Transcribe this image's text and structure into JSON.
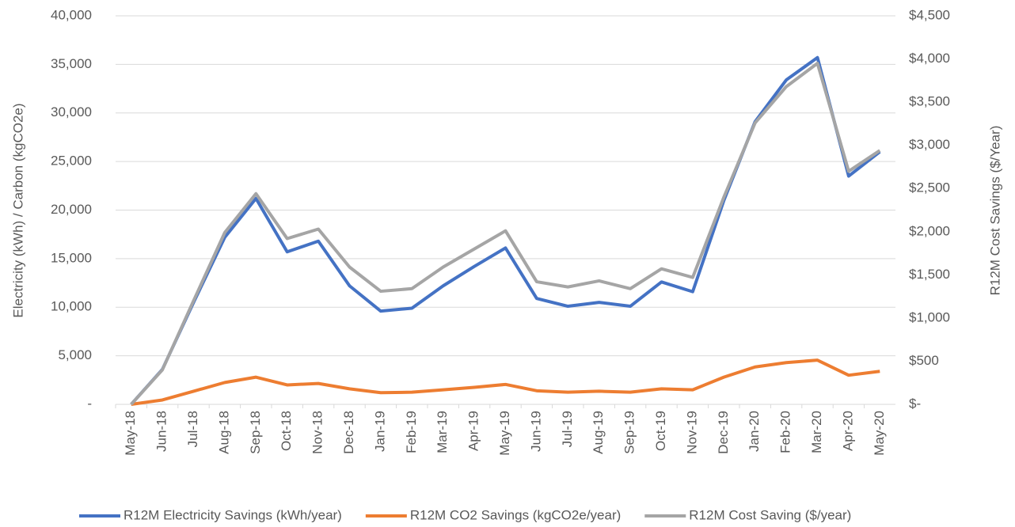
{
  "chart_data": {
    "type": "line",
    "categories": [
      "May-18",
      "Jun-18",
      "Jul-18",
      "Aug-18",
      "Sep-18",
      "Oct-18",
      "Nov-18",
      "Dec-18",
      "Jan-19",
      "Feb-19",
      "Mar-19",
      "Apr-19",
      "May-19",
      "Jun-19",
      "Jul-19",
      "Aug-19",
      "Sep-19",
      "Oct-19",
      "Nov-19",
      "Dec-19",
      "Jan-20",
      "Feb-20",
      "Mar-20",
      "Apr-20",
      "May-20"
    ],
    "series": [
      {
        "name": "R12M Electricity Savings (kWh/year)",
        "color": "#4472c4",
        "values": [
          0,
          3600,
          10500,
          17200,
          21200,
          15700,
          16800,
          12200,
          9600,
          9900,
          12200,
          14200,
          16100,
          10900,
          10100,
          10500,
          10100,
          12600,
          11600,
          21000,
          29100,
          33400,
          35700,
          23500,
          26000
        ]
      },
      {
        "name": "R12M CO2 Savings (kgCO2e/year)",
        "color": "#ed7d31",
        "values": [
          0,
          450,
          1350,
          2250,
          2800,
          2000,
          2150,
          1600,
          1200,
          1250,
          1500,
          1750,
          2050,
          1400,
          1250,
          1350,
          1250,
          1600,
          1500,
          2800,
          3850,
          4300,
          4550,
          3000,
          3400
        ]
      },
      {
        "name": "R12M Cost Saving ($/year)",
        "color": "#a5a5a5",
        "axis": "y2",
        "values": [
          0,
          400,
          1200,
          1990,
          2440,
          1920,
          2030,
          1590,
          1310,
          1340,
          1590,
          1800,
          2010,
          1420,
          1360,
          1430,
          1340,
          1570,
          1470,
          2400,
          3260,
          3680,
          3950,
          2700,
          2940
        ]
      }
    ],
    "ylabel": "Electricity (kWh) / Carbon (kgCO2e)",
    "y2label": "R12M Cost Savings ($/Year)",
    "ylim": [
      0,
      40000
    ],
    "yticks": [
      {
        "value": 0,
        "label": "-"
      },
      {
        "value": 5000,
        "label": "5,000"
      },
      {
        "value": 10000,
        "label": "10,000"
      },
      {
        "value": 15000,
        "label": "15,000"
      },
      {
        "value": 20000,
        "label": "20,000"
      },
      {
        "value": 25000,
        "label": "25,000"
      },
      {
        "value": 30000,
        "label": "30,000"
      },
      {
        "value": 35000,
        "label": "35,000"
      },
      {
        "value": 40000,
        "label": "40,000"
      }
    ],
    "y2lim": [
      0,
      4500
    ],
    "y2ticks": [
      {
        "value": 0,
        "label": "$-"
      },
      {
        "value": 500,
        "label": "$500"
      },
      {
        "value": 1000,
        "label": "$1,000"
      },
      {
        "value": 1500,
        "label": "$1,500"
      },
      {
        "value": 2000,
        "label": "$2,000"
      },
      {
        "value": 2500,
        "label": "$2,500"
      },
      {
        "value": 3000,
        "label": "$3,000"
      },
      {
        "value": 3500,
        "label": "$3,500"
      },
      {
        "value": 4000,
        "label": "$4,000"
      },
      {
        "value": 4500,
        "label": "$4,500"
      }
    ],
    "grid": true,
    "legend": "bottom"
  }
}
